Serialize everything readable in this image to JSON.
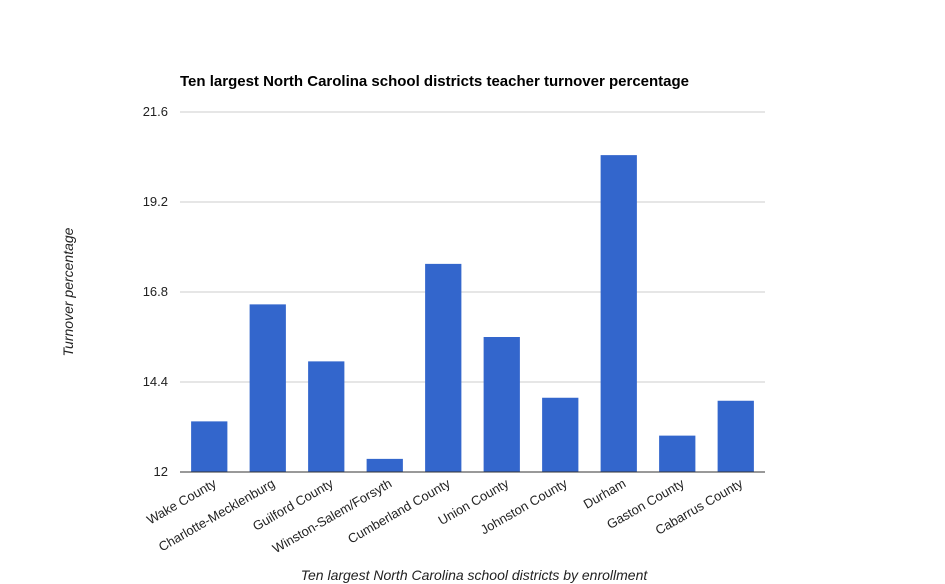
{
  "chart_data": {
    "type": "bar",
    "title": "Ten largest North Carolina school districts teacher turnover percentage",
    "xlabel": "Ten largest North Carolina school districts by enrollment",
    "ylabel": "Turnover percentage",
    "categories": [
      "Wake County",
      "Charlotte-Mecklenburg",
      "Guilford County",
      "Winston-Salem/Forsyth",
      "Cumberland County",
      "Union County",
      "Johnston County",
      "Durham",
      "Gaston County",
      "Cabarrus County"
    ],
    "values": [
      13.35,
      16.47,
      14.95,
      12.35,
      17.55,
      15.6,
      13.98,
      20.45,
      12.97,
      13.9
    ],
    "ylim": [
      12,
      21.6
    ],
    "yticks": [
      "12",
      "14.4",
      "16.8",
      "19.2",
      "21.6"
    ],
    "grid": true,
    "legend": "none",
    "bar_color": "#3366cc"
  }
}
